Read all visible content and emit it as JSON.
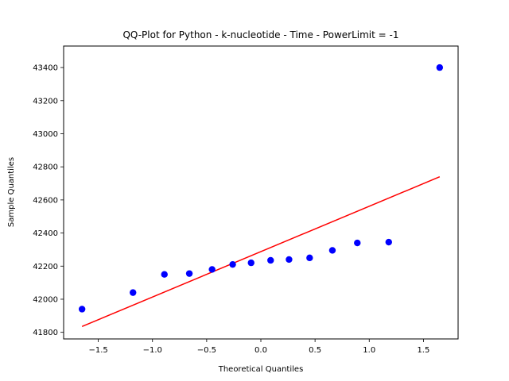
{
  "chart_data": {
    "type": "scatter",
    "title": "QQ-Plot for Python - k-nucleotide - Time - PowerLimit = -1",
    "xlabel": "Theoretical Quantiles",
    "ylabel": "Sample Quantiles",
    "xlim": [
      -1.82,
      1.82
    ],
    "ylim": [
      41760,
      43530
    ],
    "x_ticks": [
      -1.5,
      -1.0,
      -0.5,
      0.0,
      0.5,
      1.0,
      1.5
    ],
    "x_tick_labels": [
      "−1.5",
      "−1.0",
      "−0.5",
      "0.0",
      "0.5",
      "1.0",
      "1.5"
    ],
    "y_ticks": [
      41800,
      42000,
      42200,
      42400,
      42600,
      42800,
      43000,
      43200,
      43400
    ],
    "y_tick_labels": [
      "41800",
      "42000",
      "42200",
      "42400",
      "42600",
      "42800",
      "43000",
      "43200",
      "43400"
    ],
    "grid": false,
    "series": [
      {
        "kind": "points",
        "color": "#0000ff",
        "x": [
          -1.65,
          -1.18,
          -0.89,
          -0.66,
          -0.45,
          -0.26,
          -0.09,
          0.09,
          0.26,
          0.45,
          0.66,
          0.89,
          1.18,
          1.65
        ],
        "y": [
          41940,
          42040,
          42150,
          42155,
          42180,
          42210,
          42220,
          42235,
          42240,
          42250,
          42295,
          42340,
          42345,
          43400
        ]
      },
      {
        "kind": "line",
        "color": "#ff0000",
        "x": [
          -1.65,
          1.65
        ],
        "y": [
          41835,
          42740
        ]
      }
    ]
  }
}
